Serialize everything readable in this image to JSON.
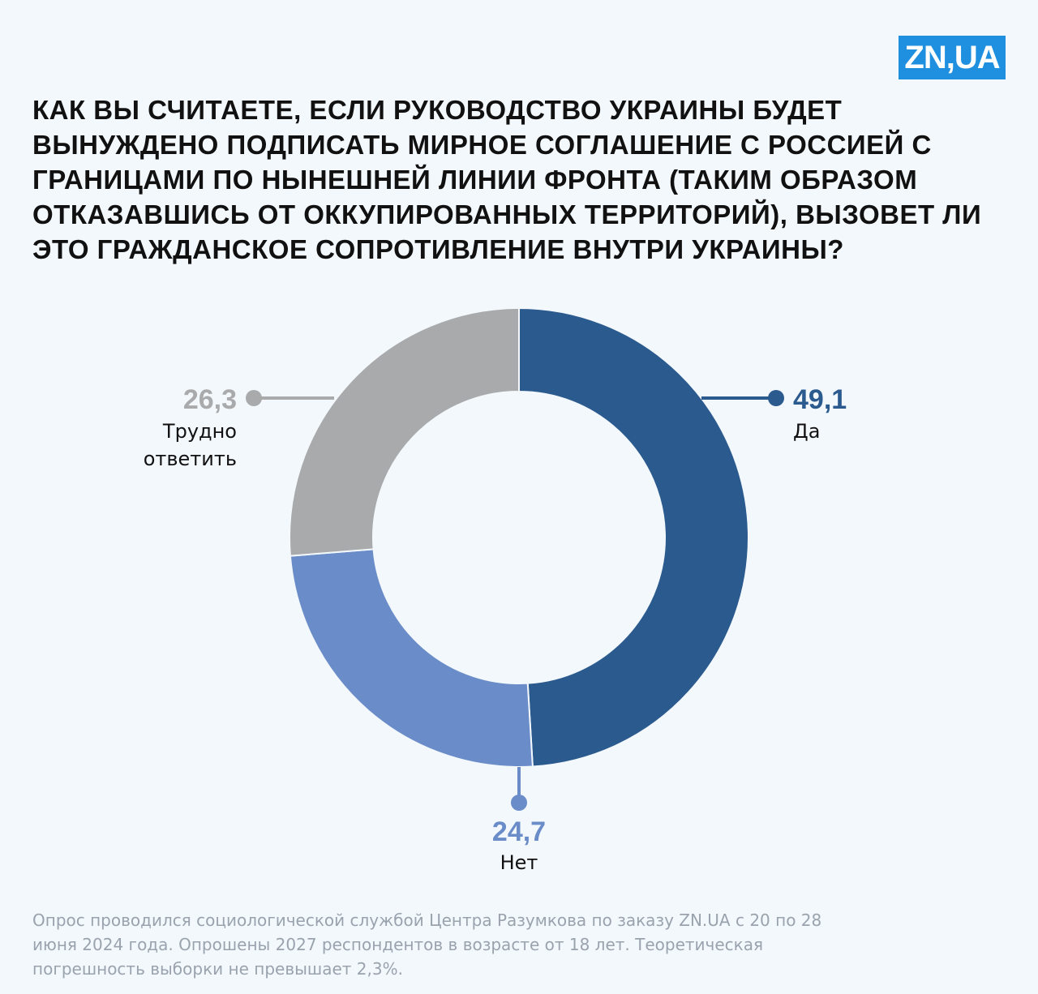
{
  "logo": "ZN,UA",
  "chart_data": {
    "type": "pie",
    "donut": true,
    "title": "Как вы считаете, если руководство Украины будет вынуждено подписать мирное соглашение с Россией с границами по нынешней линии фронта (таким образом отказавшись от оккупированных территорий), вызовет ли это гражданское сопротивление внутри Украины?",
    "categories": [
      "Да",
      "Нет",
      "Трудно ответить"
    ],
    "values": [
      49.1,
      24.7,
      26.3
    ],
    "value_labels": [
      "49,1",
      "24,7",
      "26,3"
    ],
    "colors": [
      "#2b5a8f",
      "#6a8cc8",
      "#a9aaab"
    ]
  },
  "footnote": "Опрос проводился социологической службой Центра Разумкова по заказу ZN.UA с 20 по 28 июня 2024 года. Опрошены 2027 респондентов в возрасте от 18 лет. Теоретическая погрешность выборки не превышает 2,3%."
}
